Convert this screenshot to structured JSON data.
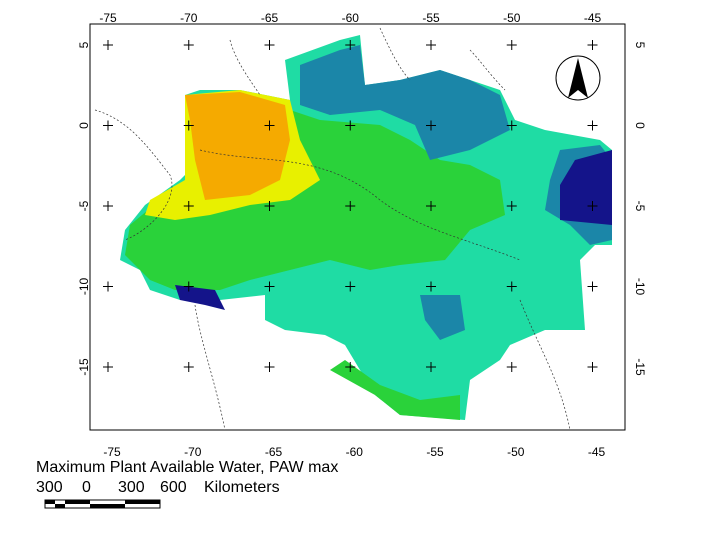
{
  "map": {
    "lon_ticks": [
      -75,
      -70,
      -65,
      -60,
      -55,
      -50,
      -45
    ],
    "lat_ticks": [
      5,
      0,
      -5,
      -10,
      -15
    ],
    "legend_title": "Maximum Plant Available Water, PAW max",
    "scale_labels": [
      "300",
      "0",
      "300",
      "600"
    ],
    "scale_unit": "Kilometers"
  }
}
